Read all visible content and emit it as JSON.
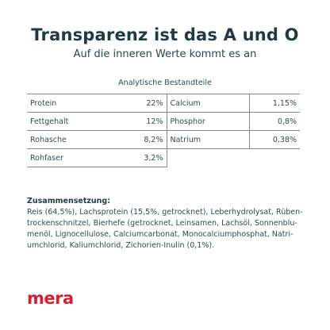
{
  "header": {
    "title": "Transparenz ist das A und O",
    "subtitle": "Auf die inneren Werte kommt es an"
  },
  "analysis": {
    "caption": "Analytische Bestandteile",
    "rows": [
      {
        "left_name": "Protein",
        "left_value": "22%",
        "right_name": "Calcium",
        "right_value": "1,15%"
      },
      {
        "left_name": "Fettgehalt",
        "left_value": "12%",
        "right_name": "Phosphor",
        "right_value": "0,8%"
      },
      {
        "left_name": "Rohasche",
        "left_value": "8,2%",
        "right_name": "Natrium",
        "right_value": "0,38%"
      },
      {
        "left_name": "Rohfaser",
        "left_value": "3,2%"
      }
    ]
  },
  "composition": {
    "heading": "Zusammensetzung:",
    "lines": [
      "Reis (64,5%), Lachsprotein (15,5%, getrocknet), Leberhydrolysat, Rüben-",
      "trockenschnitzel, Bierhefe (getrocknet, Leinsamen, Lachsöl, Sonnenblu-",
      "menöl, Lignocellulose, Calciumcarbonat, Monocalciumphosphat, Natri-",
      "umchlorid, Kaliumchlorid, Zichorien-Inulin (0,1%)."
    ]
  },
  "brand": {
    "logo_text": "mera",
    "color": "#d42033"
  },
  "colors": {
    "heading": "#1f3a45",
    "text": "#2f4a55",
    "rule": "#7a8a90"
  }
}
